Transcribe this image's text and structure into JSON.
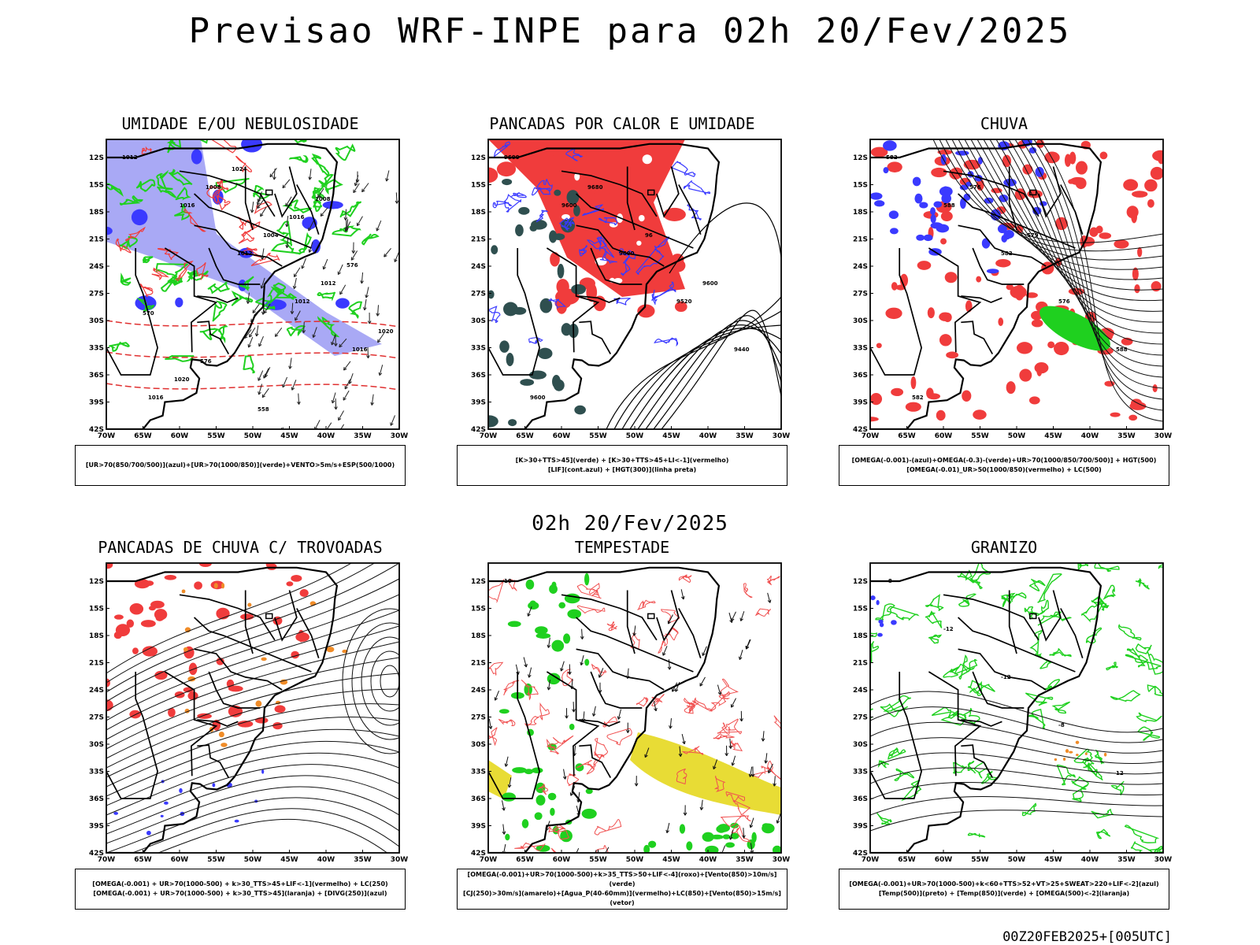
{
  "header": {
    "title": "Previsao WRF-INPE  para 02h 20/Fev/2025"
  },
  "mid_label": "02h 20/Fev/2025",
  "footer": "00Z20FEB2025+[005UTC]",
  "axes": {
    "lat_labels": [
      "12S",
      "15S",
      "18S",
      "21S",
      "24S",
      "27S",
      "30S",
      "33S",
      "36S",
      "39S",
      "42S"
    ],
    "lon_labels": [
      "70W",
      "65W",
      "60W",
      "55W",
      "50W",
      "45W",
      "40W",
      "35W",
      "30W"
    ]
  },
  "panels": [
    {
      "id": "umidade",
      "title": "UMIDADE E/OU NEBULOSIDADE",
      "legend": [
        "[UR>70(850/700/500)](azul)+[UR>70(1000/850)](verde)+VENTO>5m/s+ESP(500/1000)"
      ],
      "contour_labels": [
        "1012",
        "1016",
        "1012",
        "1012",
        "1016",
        "1016",
        "1008",
        "1004",
        "1012",
        "1020",
        "1020",
        "1024",
        "1016",
        "576",
        "570",
        "576",
        "558",
        "1008"
      ]
    },
    {
      "id": "pancadas-calor",
      "title": "PANCADAS POR CALOR E UMIDADE",
      "legend": [
        "[K>30+TTS>45](verde) + [K>30+TTS>45+LI<-1](vermelho)",
        "[LIF](cont.azul) + [HGT(300)](linha preta)"
      ],
      "contour_labels": [
        "9600",
        "9600",
        "9600",
        "9520",
        "9440",
        "9600",
        "9680",
        "96",
        "9600"
      ]
    },
    {
      "id": "chuva",
      "title": "CHUVA",
      "legend": [
        "[OMEGA(-0.001)-(azul)+OMEGA(-0.3)-(verde)+UR>70(1000/850/700/500)] + HGT(500)",
        "[OMEGA(-0.01)_UR>50(1000/850)(vermelho) + LC(500)"
      ],
      "contour_labels": [
        "582",
        "588",
        "582",
        "576",
        "588",
        "582",
        "576",
        "579"
      ]
    },
    {
      "id": "trovoadas",
      "title": "PANCADAS DE CHUVA C/ TROVOADAS",
      "legend": [
        "[OMEGA(-0.001) + UR>70(1000-500) + k>30_TTS>45+LIF<-1](vermelho) + LC(250)",
        "[OMEGA(-0.001) + UR>70(1000-500) + k>30_TTS>45](laranja) + [DIVG(250)](azul)"
      ],
      "contour_labels": []
    },
    {
      "id": "tempestade",
      "title": "TEMPESTADE",
      "legend": [
        "[OMEGA(-0.001)+UR>70(1000-500)+k>35_TTS>50+LIF<-4](roxo)+[Vento(850)>10m/s](verde)",
        "[CJ(250)>30m/s](amarelo)+[Agua_P(40-60mm)](vermelho)+LC(850)+[Vento(850)>15m/s](vetor)"
      ],
      "contour_labels": [
        "10"
      ]
    },
    {
      "id": "granizo",
      "title": "GRANIZO",
      "legend": [
        "[OMEGA(-0.001)+UR>70(1000-500)+k<60+TTS>52+VT>25+SWEAT>220+LIF<-2](azul)",
        "[Temp(500)](preto) + [Temp(850)](verde) + [OMEGA(500)<-2](laranja)"
      ],
      "contour_labels": [
        "-8",
        "-12",
        "-12",
        "-8",
        "12"
      ]
    }
  ],
  "colors": {
    "red": "#f03c3c",
    "blue": "#3a3aff",
    "lightblue": "#a9a9f5",
    "green": "#1fd01f",
    "darkgreen": "#2f4f4f",
    "yellow": "#e8dc35",
    "orange": "#f08c28"
  }
}
